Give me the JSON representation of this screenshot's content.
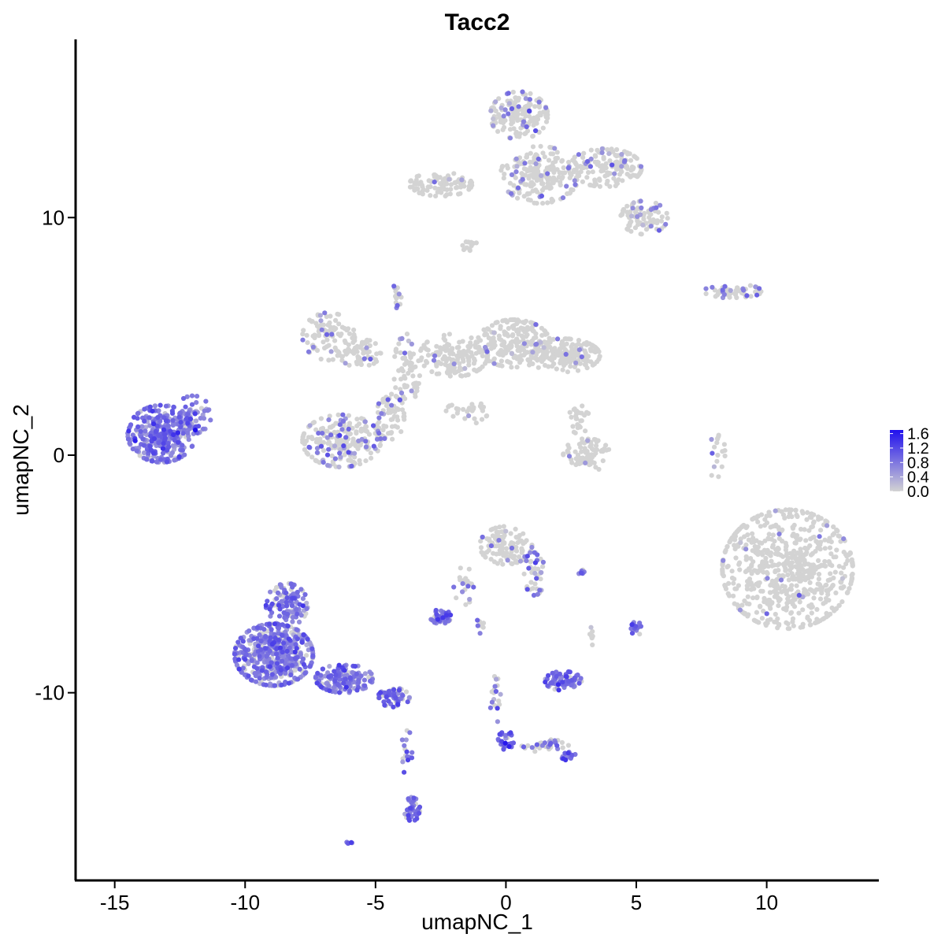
{
  "chart_data": {
    "type": "scatter",
    "title": "Tacc2",
    "xlabel": "umapNC_1",
    "ylabel": "umapNC_2",
    "xlim": [
      -16.5,
      14.3
    ],
    "ylim": [
      -17.9,
      17.5
    ],
    "x_ticks": [
      -15,
      -10,
      -5,
      0,
      5,
      10
    ],
    "x_tick_labels": [
      "-15",
      "-10",
      "-5",
      "0",
      "5",
      "10"
    ],
    "y_ticks": [
      -10,
      0,
      10
    ],
    "y_tick_labels": [
      "-10",
      "0",
      "10"
    ],
    "grid": false,
    "point_color_low": "#d3d3d3",
    "point_color_high": "#2010ee",
    "legend": {
      "placement": "right",
      "type": "colorbar",
      "range": [
        0,
        1.7
      ],
      "ticks": [
        0.0,
        0.4,
        0.8,
        1.2,
        1.6
      ],
      "tick_labels": [
        "0.0",
        "0.4",
        "0.8",
        "1.2",
        "1.6"
      ]
    },
    "clusters": [
      {
        "cx": -13.2,
        "cy": 0.9,
        "rx": 1.3,
        "ry": 1.2,
        "n": 320,
        "expr_frac": 0.95,
        "expr_mean": 0.75
      },
      {
        "cx": -12.0,
        "cy": 1.7,
        "rx": 0.7,
        "ry": 0.8,
        "n": 60,
        "expr_frac": 0.9,
        "expr_mean": 0.7
      },
      {
        "cx": -8.9,
        "cy": -8.4,
        "rx": 1.5,
        "ry": 1.3,
        "n": 480,
        "expr_frac": 0.85,
        "expr_mean": 0.75
      },
      {
        "cx": -8.4,
        "cy": -6.3,
        "rx": 0.8,
        "ry": 0.9,
        "n": 120,
        "expr_frac": 0.8,
        "expr_mean": 0.75
      },
      {
        "cx": -6.2,
        "cy": -9.4,
        "rx": 1.1,
        "ry": 0.6,
        "n": 150,
        "expr_frac": 0.8,
        "expr_mean": 0.8
      },
      {
        "cx": -4.3,
        "cy": -10.2,
        "rx": 0.6,
        "ry": 0.4,
        "n": 60,
        "expr_frac": 0.8,
        "expr_mean": 0.85
      },
      {
        "cx": -3.6,
        "cy": -14.9,
        "rx": 0.3,
        "ry": 0.5,
        "n": 40,
        "expr_frac": 0.9,
        "expr_mean": 0.9
      },
      {
        "cx": -3.8,
        "cy": -12.5,
        "rx": 0.2,
        "ry": 1.0,
        "n": 18,
        "expr_frac": 0.7,
        "expr_mean": 0.8
      },
      {
        "cx": -6.0,
        "cy": -16.3,
        "rx": 0.1,
        "ry": 0.1,
        "n": 5,
        "expr_frac": 1.0,
        "expr_mean": 0.9
      },
      {
        "cx": -6.3,
        "cy": 0.6,
        "rx": 1.5,
        "ry": 1.1,
        "n": 220,
        "expr_frac": 0.25,
        "expr_mean": 0.7
      },
      {
        "cx": -4.5,
        "cy": 1.6,
        "rx": 0.6,
        "ry": 1.0,
        "n": 60,
        "expr_frac": 0.15,
        "expr_mean": 0.7
      },
      {
        "cx": -3.8,
        "cy": 3.6,
        "rx": 0.5,
        "ry": 1.5,
        "n": 70,
        "expr_frac": 0.08,
        "expr_mean": 0.6
      },
      {
        "cx": -6.8,
        "cy": 5.0,
        "rx": 1.0,
        "ry": 1.0,
        "n": 90,
        "expr_frac": 0.12,
        "expr_mean": 0.65
      },
      {
        "cx": -5.6,
        "cy": 4.3,
        "rx": 0.8,
        "ry": 0.6,
        "n": 60,
        "expr_frac": 0.06,
        "expr_mean": 0.6
      },
      {
        "cx": -2.0,
        "cy": 4.2,
        "rx": 1.3,
        "ry": 0.9,
        "n": 150,
        "expr_frac": 0.05,
        "expr_mean": 0.6
      },
      {
        "cx": 0.3,
        "cy": 4.7,
        "rx": 1.4,
        "ry": 1.0,
        "n": 200,
        "expr_frac": 0.05,
        "expr_mean": 0.6
      },
      {
        "cx": 2.2,
        "cy": 4.2,
        "rx": 1.4,
        "ry": 0.7,
        "n": 180,
        "expr_frac": 0.03,
        "expr_mean": 0.6
      },
      {
        "cx": -1.5,
        "cy": 1.8,
        "rx": 0.8,
        "ry": 0.5,
        "n": 30,
        "expr_frac": 0.05,
        "expr_mean": 0.6
      },
      {
        "cx": -4.2,
        "cy": 6.7,
        "rx": 0.2,
        "ry": 0.5,
        "n": 15,
        "expr_frac": 0.4,
        "expr_mean": 0.7
      },
      {
        "cx": 0.5,
        "cy": 14.3,
        "rx": 1.1,
        "ry": 1.0,
        "n": 160,
        "expr_frac": 0.15,
        "expr_mean": 0.7
      },
      {
        "cx": 1.3,
        "cy": 11.8,
        "rx": 1.5,
        "ry": 1.2,
        "n": 200,
        "expr_frac": 0.12,
        "expr_mean": 0.7
      },
      {
        "cx": 3.8,
        "cy": 12.1,
        "rx": 1.4,
        "ry": 0.8,
        "n": 150,
        "expr_frac": 0.1,
        "expr_mean": 0.65
      },
      {
        "cx": 5.3,
        "cy": 10.0,
        "rx": 0.9,
        "ry": 0.7,
        "n": 90,
        "expr_frac": 0.15,
        "expr_mean": 0.7
      },
      {
        "cx": -2.5,
        "cy": 11.4,
        "rx": 1.2,
        "ry": 0.5,
        "n": 90,
        "expr_frac": 0.05,
        "expr_mean": 0.7
      },
      {
        "cx": -1.4,
        "cy": 8.8,
        "rx": 0.3,
        "ry": 0.3,
        "n": 12,
        "expr_frac": 0.0,
        "expr_mean": 0.5
      },
      {
        "cx": 8.7,
        "cy": 6.9,
        "rx": 1.1,
        "ry": 0.3,
        "n": 50,
        "expr_frac": 0.35,
        "expr_mean": 0.8
      },
      {
        "cx": 3.1,
        "cy": 0.0,
        "rx": 0.9,
        "ry": 0.7,
        "n": 80,
        "expr_frac": 0.03,
        "expr_mean": 0.6
      },
      {
        "cx": 2.8,
        "cy": 1.5,
        "rx": 0.4,
        "ry": 0.6,
        "n": 25,
        "expr_frac": 0.0,
        "expr_mean": 0.5
      },
      {
        "cx": 8.1,
        "cy": 0.0,
        "rx": 0.3,
        "ry": 1.2,
        "n": 18,
        "expr_frac": 0.3,
        "expr_mean": 0.6
      },
      {
        "cx": 10.8,
        "cy": -4.8,
        "rx": 2.5,
        "ry": 2.5,
        "n": 650,
        "expr_frac": 0.015,
        "expr_mean": 0.6
      },
      {
        "cx": 0.0,
        "cy": -3.8,
        "rx": 1.0,
        "ry": 0.8,
        "n": 120,
        "expr_frac": 0.12,
        "expr_mean": 0.7
      },
      {
        "cx": 1.1,
        "cy": -5.0,
        "rx": 0.4,
        "ry": 0.9,
        "n": 40,
        "expr_frac": 0.3,
        "expr_mean": 0.8
      },
      {
        "cx": -2.5,
        "cy": -6.8,
        "rx": 0.4,
        "ry": 0.3,
        "n": 40,
        "expr_frac": 0.85,
        "expr_mean": 0.8
      },
      {
        "cx": -1.6,
        "cy": -5.5,
        "rx": 0.4,
        "ry": 0.8,
        "n": 20,
        "expr_frac": 0.4,
        "expr_mean": 0.7
      },
      {
        "cx": 2.2,
        "cy": -9.5,
        "rx": 0.7,
        "ry": 0.4,
        "n": 80,
        "expr_frac": 0.85,
        "expr_mean": 0.8
      },
      {
        "cx": 0.0,
        "cy": -12.0,
        "rx": 0.3,
        "ry": 0.4,
        "n": 30,
        "expr_frac": 0.9,
        "expr_mean": 0.95
      },
      {
        "cx": 1.5,
        "cy": -12.2,
        "rx": 0.9,
        "ry": 0.3,
        "n": 35,
        "expr_frac": 0.3,
        "expr_mean": 0.8
      },
      {
        "cx": 2.4,
        "cy": -12.7,
        "rx": 0.3,
        "ry": 0.2,
        "n": 15,
        "expr_frac": 0.8,
        "expr_mean": 0.9
      },
      {
        "cx": -0.4,
        "cy": -10.3,
        "rx": 0.2,
        "ry": 1.0,
        "n": 18,
        "expr_frac": 0.5,
        "expr_mean": 0.7
      },
      {
        "cx": 5.0,
        "cy": -7.3,
        "rx": 0.2,
        "ry": 0.3,
        "n": 18,
        "expr_frac": 0.9,
        "expr_mean": 0.9
      },
      {
        "cx": 2.9,
        "cy": -4.9,
        "rx": 0.2,
        "ry": 0.1,
        "n": 6,
        "expr_frac": 0.6,
        "expr_mean": 0.7
      },
      {
        "cx": 3.3,
        "cy": -7.6,
        "rx": 0.1,
        "ry": 0.5,
        "n": 8,
        "expr_frac": 0.3,
        "expr_mean": 0.6
      },
      {
        "cx": -1.0,
        "cy": -7.2,
        "rx": 0.2,
        "ry": 0.3,
        "n": 8,
        "expr_frac": 0.3,
        "expr_mean": 0.7
      }
    ]
  }
}
